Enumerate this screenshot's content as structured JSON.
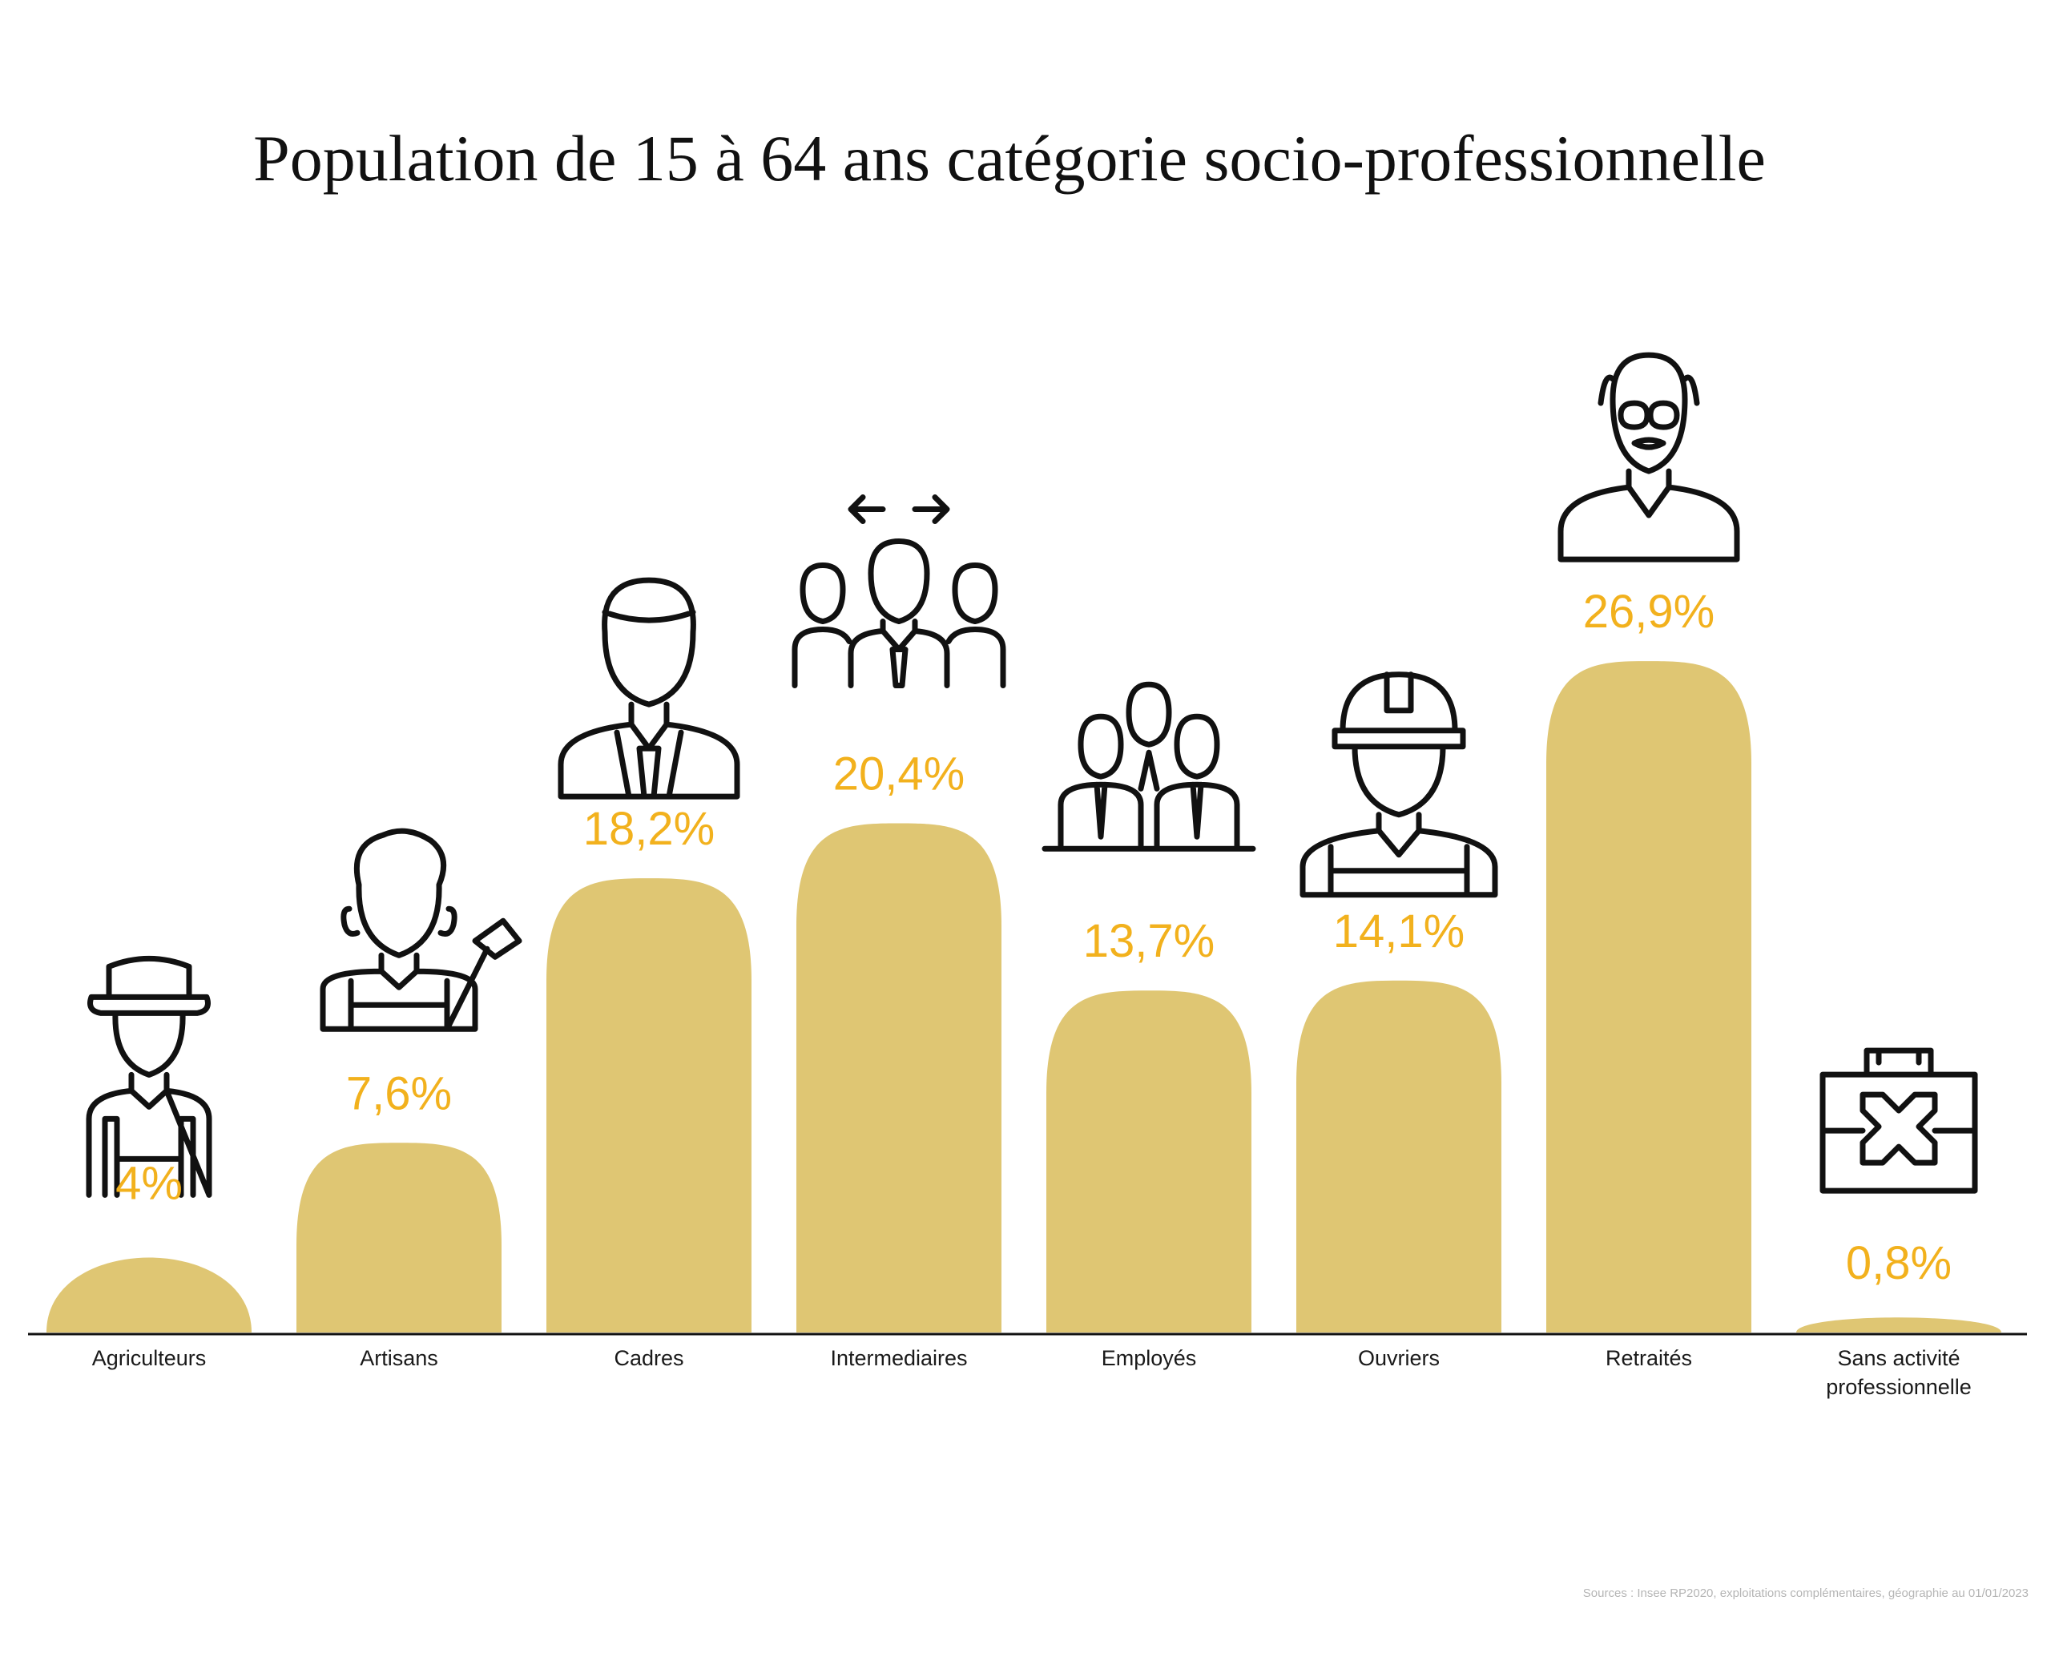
{
  "chart_data": {
    "type": "bar",
    "title": "Population de 15 à 64 ans catégorie socio-professionnelle",
    "categories": [
      "Agriculteurs",
      "Artisans",
      "Cadres",
      "Intermediaires",
      "Employés",
      "Ouvriers",
      "Retraités",
      "Sans activité professionnelle"
    ],
    "category_lines": [
      [
        "Agriculteurs"
      ],
      [
        "Artisans"
      ],
      [
        "Cadres"
      ],
      [
        "Intermediaires"
      ],
      [
        "Employés"
      ],
      [
        "Ouvriers"
      ],
      [
        "Retraités"
      ],
      [
        "Sans activité",
        "professionnelle"
      ]
    ],
    "values": [
      4,
      7.6,
      18.2,
      20.4,
      13.7,
      14.1,
      26.9,
      0.8
    ],
    "value_labels": [
      "4%",
      "7,6%",
      "18,2%",
      "20,4%",
      "13,7%",
      "14,1%",
      "26,9%",
      "0,8%"
    ],
    "icons": [
      "farmer-icon",
      "craftsman-icon",
      "manager-icon",
      "team-leader-icon",
      "employees-icon",
      "worker-icon",
      "retiree-icon",
      "no-job-briefcase-icon"
    ],
    "xlabel": "",
    "ylabel": "",
    "ylim": [
      0,
      30
    ],
    "grid": false,
    "legend": "none",
    "colors": {
      "bar": "#dfc673",
      "value_label": "#f2b11d",
      "text": "#111111",
      "source": "#b5b5b5"
    }
  },
  "source": "Sources : Insee RP2020, exploitations complémentaires, géographie au 01/01/2023"
}
